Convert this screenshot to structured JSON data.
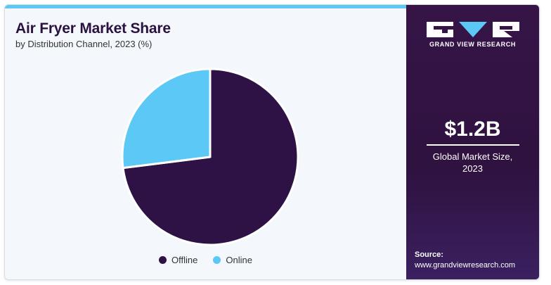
{
  "header": {
    "title": "Air Fryer Market Share",
    "subtitle": "by Distribution Channel, 2023 (%)"
  },
  "chart_data": {
    "type": "pie",
    "categories": [
      "Offline",
      "Online"
    ],
    "values": [
      73,
      27
    ],
    "colors": [
      "#2e1145",
      "#5bc8f5"
    ],
    "legend_position": "bottom-center"
  },
  "brand": {
    "logo_icon": "gvr-logo-icon",
    "name": "GRAND VIEW RESEARCH"
  },
  "kpi": {
    "value": "$1.2B",
    "label_line1": "Global Market Size,",
    "label_line2": "2023"
  },
  "source": {
    "label": "Source:",
    "url": "www.grandviewresearch.com"
  }
}
